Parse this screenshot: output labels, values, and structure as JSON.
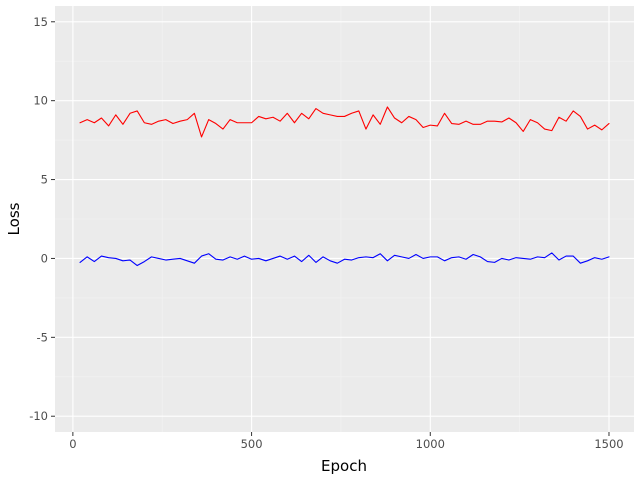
{
  "chart_data": {
    "type": "line",
    "title": "",
    "xlabel": "Epoch",
    "ylabel": "Loss",
    "xlim": [
      -50,
      1570
    ],
    "ylim": [
      -11,
      16
    ],
    "x_ticks": [
      0,
      500,
      1000,
      1500
    ],
    "x_tick_labels": [
      "0",
      "500",
      "1000",
      "1500"
    ],
    "y_ticks": [
      -10,
      -5,
      0,
      5,
      10,
      15
    ],
    "y_tick_labels": [
      "-10",
      "-5",
      "0",
      "5",
      "10",
      "15"
    ],
    "grid": true,
    "legend": "none",
    "colors": {
      "panel_background": "#ebebeb",
      "grid_major": "#ffffff",
      "grid_minor": "#f3f3f3",
      "axis_text": "#4d4d4d",
      "axis_title": "#000000"
    },
    "x": [
      20,
      40,
      60,
      80,
      100,
      120,
      140,
      160,
      180,
      200,
      220,
      240,
      260,
      280,
      300,
      320,
      340,
      360,
      380,
      400,
      420,
      440,
      460,
      480,
      500,
      520,
      540,
      560,
      580,
      600,
      620,
      640,
      660,
      680,
      700,
      720,
      740,
      760,
      780,
      800,
      820,
      840,
      860,
      880,
      900,
      920,
      940,
      960,
      980,
      1000,
      1020,
      1040,
      1060,
      1080,
      1100,
      1120,
      1140,
      1160,
      1180,
      1200,
      1220,
      1240,
      1260,
      1280,
      1300,
      1320,
      1340,
      1360,
      1380,
      1400,
      1420,
      1440,
      1460,
      1480,
      1500
    ],
    "series": [
      {
        "color": "#ff0000",
        "values": [
          8.6,
          8.8,
          8.6,
          8.9,
          8.4,
          9.1,
          8.5,
          9.2,
          9.35,
          8.6,
          8.5,
          8.7,
          8.8,
          8.55,
          8.7,
          8.8,
          9.2,
          7.7,
          8.8,
          8.55,
          8.2,
          8.8,
          8.6,
          8.6,
          8.6,
          9.0,
          8.85,
          8.95,
          8.7,
          9.2,
          8.6,
          9.2,
          8.85,
          9.5,
          9.2,
          9.1,
          9.0,
          9.0,
          9.2,
          9.35,
          8.2,
          9.1,
          8.5,
          9.6,
          8.9,
          8.6,
          9.0,
          8.8,
          8.3,
          8.45,
          8.4,
          9.2,
          8.55,
          8.5,
          8.7,
          8.5,
          8.5,
          8.7,
          8.7,
          8.65,
          8.9,
          8.6,
          8.05,
          8.8,
          8.6,
          8.2,
          8.1,
          8.95,
          8.7,
          9.35,
          9.0,
          8.2,
          8.45,
          8.15,
          8.55
        ]
      },
      {
        "color": "#0000ff",
        "values": [
          -0.25,
          0.1,
          -0.2,
          0.15,
          0.05,
          0.0,
          -0.15,
          -0.1,
          -0.45,
          -0.2,
          0.1,
          0.0,
          -0.1,
          -0.05,
          0.0,
          -0.15,
          -0.3,
          0.15,
          0.3,
          -0.05,
          -0.1,
          0.1,
          -0.05,
          0.15,
          -0.05,
          0.0,
          -0.15,
          0.0,
          0.15,
          -0.05,
          0.15,
          -0.2,
          0.2,
          -0.25,
          0.1,
          -0.15,
          -0.3,
          -0.05,
          -0.1,
          0.05,
          0.1,
          0.05,
          0.3,
          -0.15,
          0.2,
          0.1,
          0.0,
          0.25,
          0.0,
          0.1,
          0.1,
          -0.15,
          0.05,
          0.1,
          -0.05,
          0.25,
          0.1,
          -0.2,
          -0.25,
          0.0,
          -0.1,
          0.05,
          0.0,
          -0.05,
          0.1,
          0.05,
          0.35,
          -0.1,
          0.15,
          0.15,
          -0.3,
          -0.15,
          0.05,
          -0.05,
          0.1
        ]
      }
    ]
  }
}
